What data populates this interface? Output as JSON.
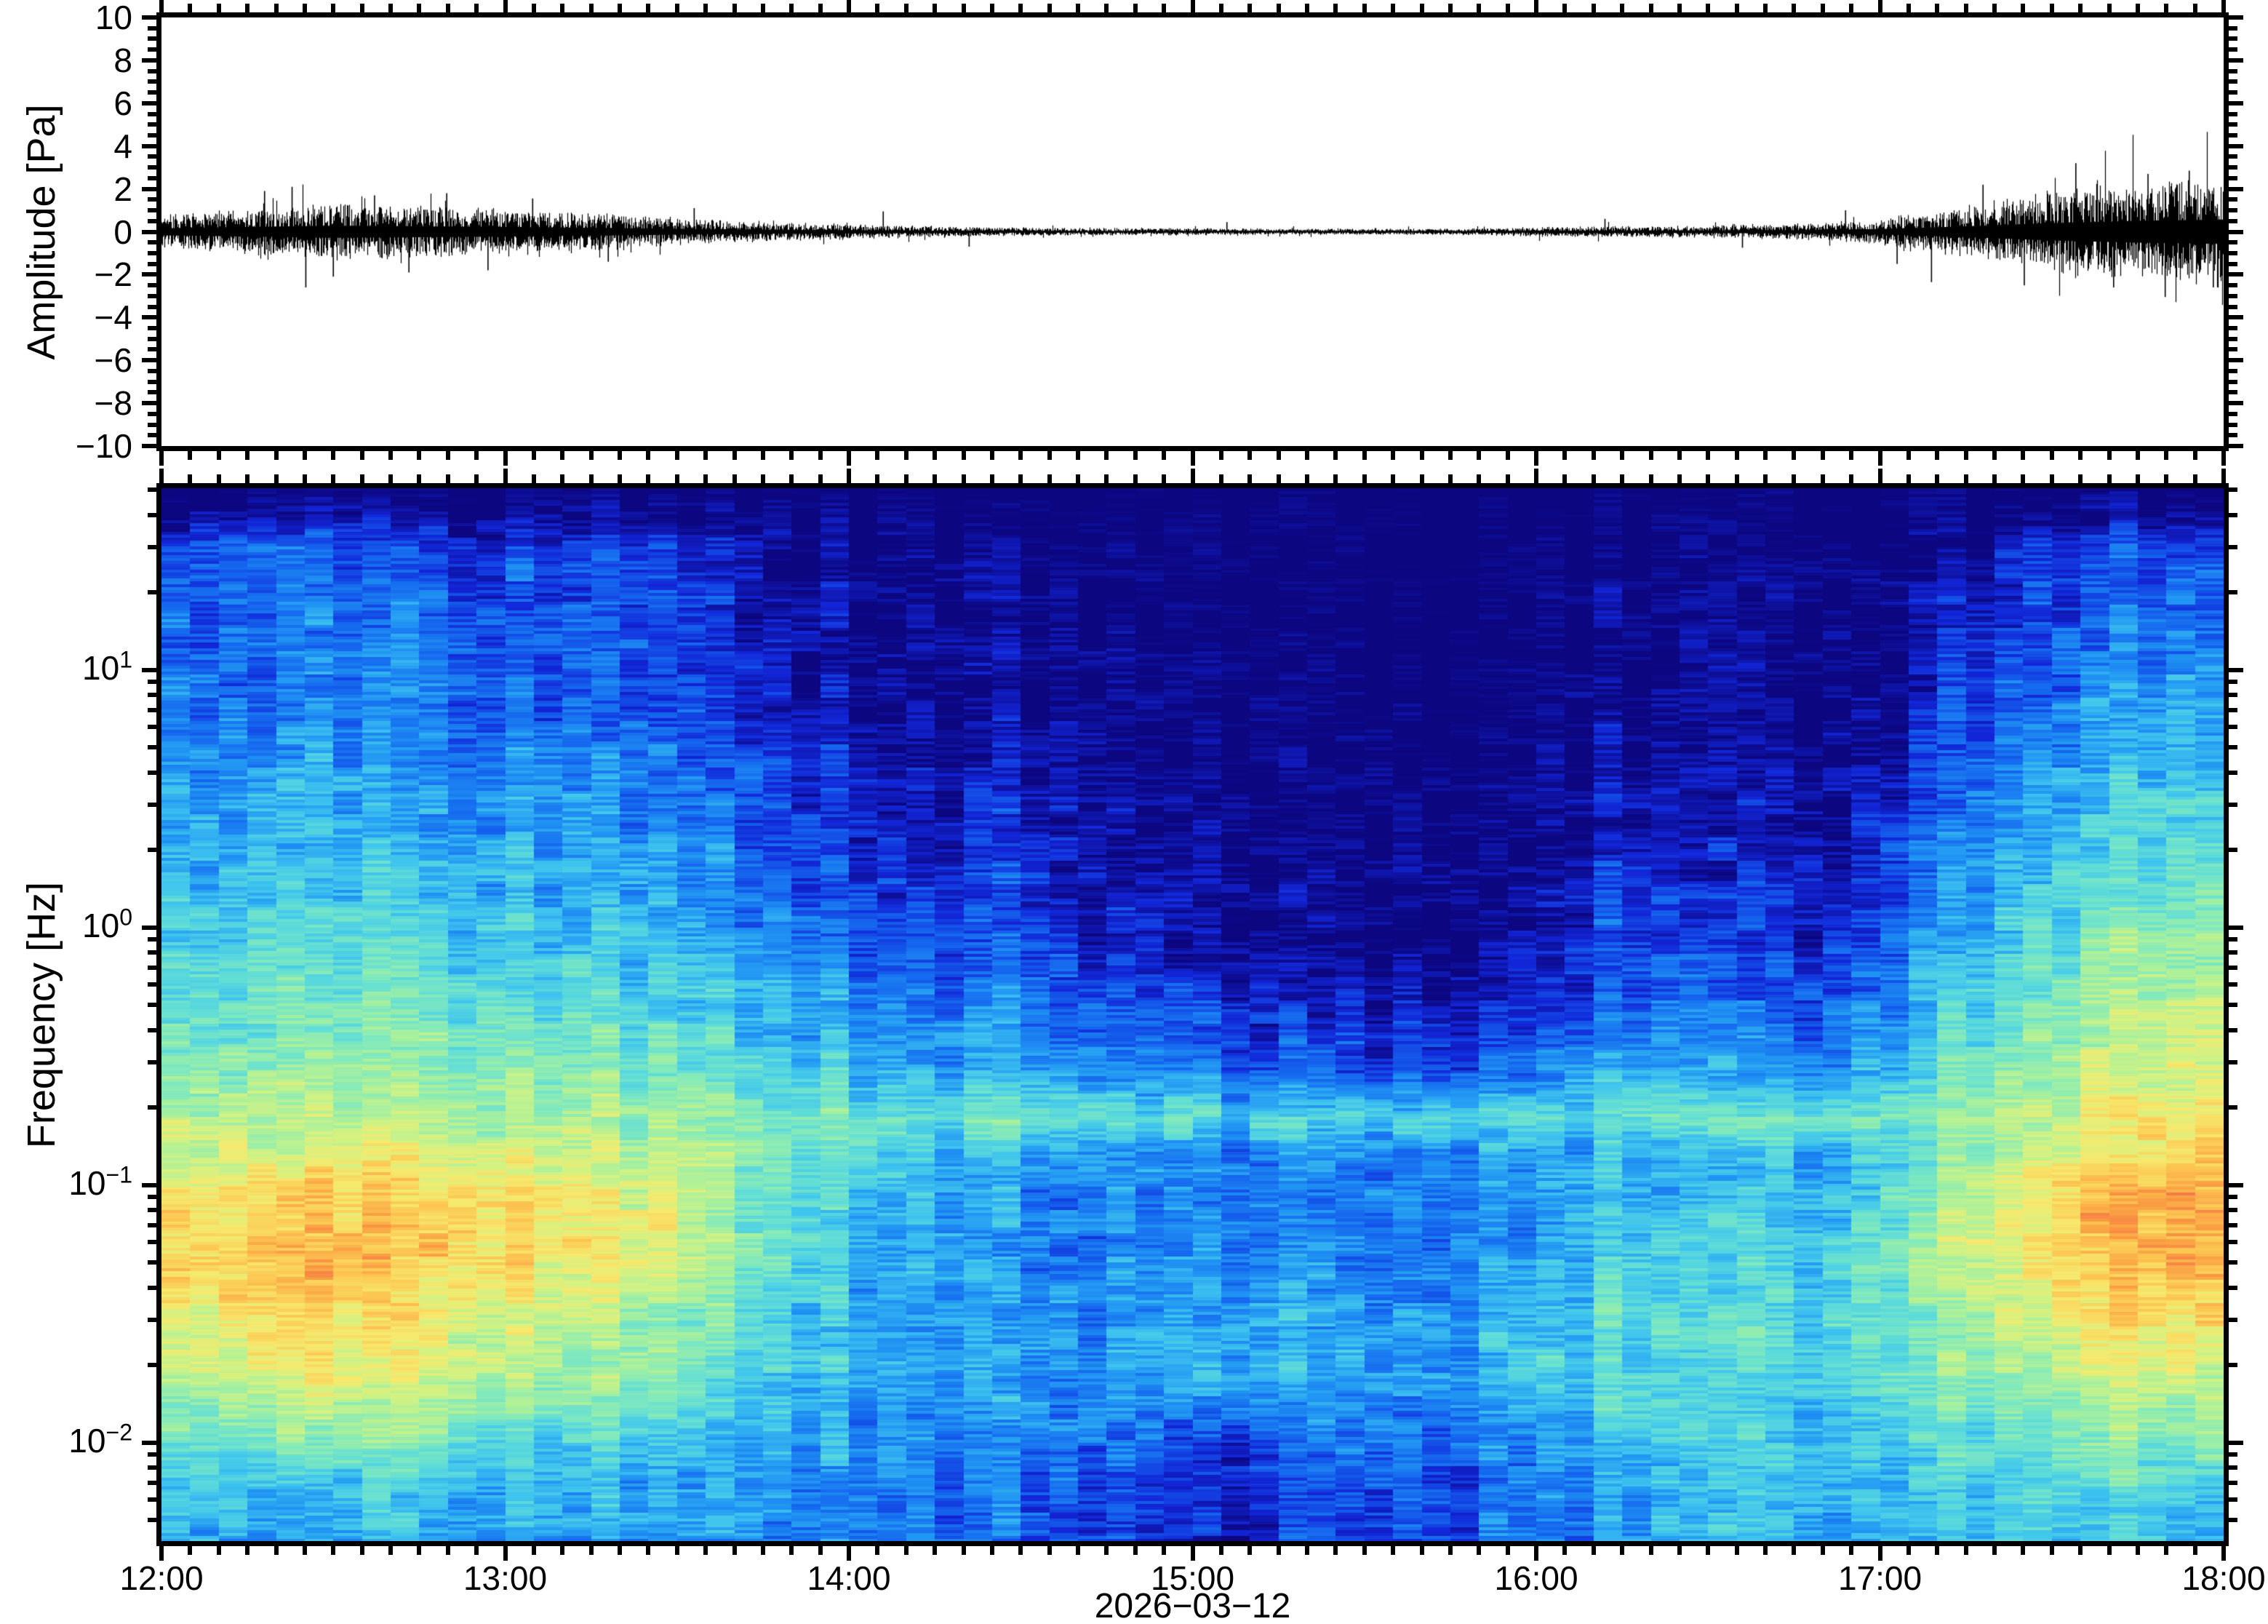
{
  "figure": {
    "background": "#ffffff",
    "frame_color": "#000000",
    "trace_color": "#000000"
  },
  "axes": {
    "x": {
      "tick_labels": [
        "12:00",
        "13:00",
        "14:00",
        "15:00",
        "16:00",
        "17:00",
        "18:00"
      ],
      "minor_tick_interval_minutes": 5,
      "date_label": "2026−03−12"
    },
    "top_y": {
      "label": "Amplitude [Pa]",
      "tick_labels": [
        "10",
        "8",
        "6",
        "4",
        "2",
        "0",
        "−2",
        "−4",
        "−6",
        "−8",
        "−10"
      ],
      "tick_values": [
        10,
        8,
        6,
        4,
        2,
        0,
        -2,
        -4,
        -6,
        -8,
        -10
      ],
      "minor_tick_step": 0.5,
      "limits": [
        -10,
        10
      ]
    },
    "bottom_y": {
      "label": "Frequency [Hz]",
      "tick_exponents": [
        1,
        0,
        -1,
        -2
      ],
      "scale": "log",
      "limits_hz": [
        0.0042,
        50.8
      ]
    }
  },
  "chart_data": [
    {
      "type": "line",
      "name": "infrasound-waveform",
      "title": "",
      "xlabel": "",
      "ylabel": "Amplitude [Pa]",
      "ylim": [
        -10,
        10
      ],
      "x_range_hours": [
        12,
        18
      ],
      "x_hours": [
        12.0,
        12.25,
        12.5,
        12.75,
        13.0,
        13.25,
        13.5,
        13.75,
        14.0,
        14.25,
        14.5,
        14.75,
        15.0,
        15.25,
        15.5,
        15.75,
        16.0,
        16.25,
        16.5,
        16.75,
        17.0,
        17.25,
        17.5,
        17.75,
        18.0
      ],
      "envelope_pa": [
        0.55,
        0.75,
        0.95,
        0.85,
        0.75,
        0.62,
        0.45,
        0.33,
        0.25,
        0.18,
        0.14,
        0.12,
        0.12,
        0.1,
        0.1,
        0.1,
        0.16,
        0.18,
        0.2,
        0.26,
        0.42,
        0.85,
        1.35,
        1.7,
        1.9
      ],
      "spikes_hour_pa": [
        [
          0.3,
          1.9
        ],
        [
          0.38,
          2.1
        ],
        [
          0.42,
          -2.6
        ],
        [
          0.5,
          -2.1
        ],
        [
          0.62,
          1.7
        ],
        [
          0.72,
          -1.9
        ],
        [
          0.83,
          1.8
        ],
        [
          0.95,
          -1.8
        ],
        [
          1.08,
          1.55
        ],
        [
          1.3,
          -1.4
        ],
        [
          1.55,
          1.1
        ],
        [
          2.1,
          0.95
        ],
        [
          2.35,
          -0.7
        ],
        [
          3.1,
          0.45
        ],
        [
          4.2,
          0.6
        ],
        [
          4.6,
          -0.75
        ],
        [
          4.9,
          1.0
        ],
        [
          5.05,
          -1.5
        ],
        [
          5.15,
          -2.35
        ],
        [
          5.3,
          2.2
        ],
        [
          5.42,
          -2.5
        ],
        [
          5.57,
          3.2
        ],
        [
          5.68,
          -2.6
        ],
        [
          5.78,
          2.7
        ],
        [
          5.83,
          -3.05
        ],
        [
          5.9,
          2.85
        ],
        [
          5.97,
          -2.6
        ]
      ]
    },
    {
      "type": "heatmap",
      "name": "spectrogram",
      "title": "",
      "xlabel": "2026−03−12",
      "ylabel": "Frequency [Hz]",
      "yscale": "log",
      "ylim_hz": [
        0.0042,
        50.8
      ],
      "x_range_hours": [
        12,
        18
      ],
      "time_step_minutes": 15,
      "x_hours": [
        12.0,
        12.25,
        12.5,
        12.75,
        13.0,
        13.25,
        13.5,
        13.75,
        14.0,
        14.25,
        14.5,
        14.75,
        15.0,
        15.25,
        15.5,
        15.75,
        16.0,
        16.25,
        16.5,
        16.75,
        17.0,
        17.25,
        17.5,
        17.75,
        18.0
      ],
      "freq_hz": [
        50,
        30,
        16,
        8,
        4,
        2,
        1,
        0.5,
        0.28,
        0.18,
        0.135,
        0.09,
        0.055,
        0.032,
        0.018,
        0.01,
        0.0065,
        0.0042
      ],
      "values_rel_power": [
        [
          0.06,
          0.05,
          0.05,
          0.05,
          0.05,
          0.05,
          0.04,
          0.04,
          0.04,
          0.03,
          0.03,
          0.03,
          0.03,
          0.03,
          0.03,
          0.03,
          0.03,
          0.04,
          0.04,
          0.04,
          0.04,
          0.05,
          0.06,
          0.06,
          0.06
        ],
        [
          0.3,
          0.29,
          0.3,
          0.29,
          0.28,
          0.26,
          0.22,
          0.16,
          0.12,
          0.1,
          0.12,
          0.07,
          0.05,
          0.05,
          0.04,
          0.04,
          0.05,
          0.1,
          0.08,
          0.07,
          0.1,
          0.18,
          0.26,
          0.29,
          0.3
        ],
        [
          0.33,
          0.32,
          0.33,
          0.32,
          0.31,
          0.29,
          0.26,
          0.2,
          0.15,
          0.12,
          0.15,
          0.09,
          0.07,
          0.06,
          0.05,
          0.05,
          0.06,
          0.13,
          0.1,
          0.09,
          0.13,
          0.22,
          0.3,
          0.33,
          0.34
        ],
        [
          0.36,
          0.35,
          0.36,
          0.35,
          0.34,
          0.32,
          0.28,
          0.23,
          0.18,
          0.14,
          0.18,
          0.11,
          0.08,
          0.08,
          0.07,
          0.07,
          0.08,
          0.16,
          0.12,
          0.11,
          0.16,
          0.26,
          0.36,
          0.4,
          0.42
        ],
        [
          0.4,
          0.39,
          0.4,
          0.39,
          0.38,
          0.36,
          0.32,
          0.27,
          0.22,
          0.17,
          0.22,
          0.14,
          0.1,
          0.1,
          0.09,
          0.09,
          0.1,
          0.2,
          0.15,
          0.14,
          0.2,
          0.31,
          0.42,
          0.46,
          0.48
        ],
        [
          0.44,
          0.43,
          0.45,
          0.44,
          0.43,
          0.41,
          0.37,
          0.32,
          0.26,
          0.21,
          0.26,
          0.17,
          0.13,
          0.12,
          0.11,
          0.11,
          0.13,
          0.24,
          0.19,
          0.17,
          0.25,
          0.37,
          0.48,
          0.53,
          0.56
        ],
        [
          0.5,
          0.49,
          0.51,
          0.5,
          0.49,
          0.47,
          0.43,
          0.37,
          0.31,
          0.26,
          0.31,
          0.21,
          0.16,
          0.15,
          0.14,
          0.14,
          0.17,
          0.29,
          0.24,
          0.22,
          0.31,
          0.44,
          0.55,
          0.61,
          0.64
        ],
        [
          0.57,
          0.56,
          0.58,
          0.57,
          0.56,
          0.54,
          0.5,
          0.44,
          0.38,
          0.33,
          0.38,
          0.28,
          0.23,
          0.21,
          0.2,
          0.2,
          0.24,
          0.36,
          0.31,
          0.29,
          0.38,
          0.51,
          0.62,
          0.68,
          0.71
        ],
        [
          0.64,
          0.63,
          0.66,
          0.65,
          0.64,
          0.62,
          0.58,
          0.52,
          0.47,
          0.42,
          0.46,
          0.37,
          0.32,
          0.3,
          0.29,
          0.29,
          0.33,
          0.44,
          0.4,
          0.38,
          0.46,
          0.58,
          0.69,
          0.75,
          0.77
        ],
        [
          0.7,
          0.7,
          0.72,
          0.71,
          0.7,
          0.68,
          0.65,
          0.61,
          0.58,
          0.56,
          0.58,
          0.54,
          0.52,
          0.52,
          0.52,
          0.52,
          0.54,
          0.58,
          0.57,
          0.56,
          0.6,
          0.66,
          0.74,
          0.8,
          0.82
        ],
        [
          0.74,
          0.74,
          0.76,
          0.75,
          0.74,
          0.72,
          0.68,
          0.62,
          0.55,
          0.48,
          0.45,
          0.4,
          0.38,
          0.38,
          0.38,
          0.38,
          0.4,
          0.46,
          0.44,
          0.43,
          0.5,
          0.62,
          0.76,
          0.84,
          0.86
        ],
        [
          0.82,
          0.84,
          0.88,
          0.86,
          0.84,
          0.8,
          0.74,
          0.6,
          0.48,
          0.42,
          0.4,
          0.36,
          0.35,
          0.36,
          0.36,
          0.36,
          0.38,
          0.48,
          0.44,
          0.44,
          0.55,
          0.72,
          0.86,
          0.94,
          0.95
        ],
        [
          0.86,
          0.9,
          0.92,
          0.88,
          0.85,
          0.8,
          0.72,
          0.58,
          0.46,
          0.4,
          0.38,
          0.36,
          0.36,
          0.37,
          0.36,
          0.37,
          0.4,
          0.52,
          0.48,
          0.47,
          0.58,
          0.72,
          0.87,
          0.93,
          0.93
        ],
        [
          0.8,
          0.84,
          0.86,
          0.82,
          0.78,
          0.72,
          0.64,
          0.54,
          0.45,
          0.4,
          0.4,
          0.38,
          0.4,
          0.42,
          0.4,
          0.41,
          0.46,
          0.56,
          0.52,
          0.5,
          0.58,
          0.68,
          0.8,
          0.86,
          0.85
        ],
        [
          0.7,
          0.74,
          0.76,
          0.73,
          0.7,
          0.64,
          0.58,
          0.5,
          0.44,
          0.4,
          0.42,
          0.4,
          0.42,
          0.44,
          0.42,
          0.43,
          0.48,
          0.55,
          0.52,
          0.5,
          0.55,
          0.62,
          0.7,
          0.74,
          0.73
        ],
        [
          0.58,
          0.6,
          0.62,
          0.6,
          0.56,
          0.52,
          0.48,
          0.44,
          0.4,
          0.36,
          0.38,
          0.34,
          0.25,
          0.3,
          0.34,
          0.33,
          0.38,
          0.48,
          0.48,
          0.47,
          0.5,
          0.55,
          0.6,
          0.62,
          0.6
        ],
        [
          0.5,
          0.48,
          0.45,
          0.48,
          0.46,
          0.44,
          0.42,
          0.4,
          0.37,
          0.33,
          0.34,
          0.3,
          0.18,
          0.22,
          0.3,
          0.3,
          0.35,
          0.44,
          0.45,
          0.44,
          0.46,
          0.5,
          0.52,
          0.52,
          0.5
        ],
        [
          0.46,
          0.42,
          0.38,
          0.42,
          0.42,
          0.4,
          0.38,
          0.37,
          0.35,
          0.32,
          0.32,
          0.28,
          0.2,
          0.24,
          0.3,
          0.3,
          0.34,
          0.42,
          0.43,
          0.42,
          0.44,
          0.47,
          0.48,
          0.47,
          0.45
        ]
      ],
      "colormap_stops": [
        [
          0.0,
          "#0c0680"
        ],
        [
          0.1,
          "#1226d8"
        ],
        [
          0.18,
          "#1565ee"
        ],
        [
          0.26,
          "#2196f3"
        ],
        [
          0.33,
          "#3fc4ee"
        ],
        [
          0.4,
          "#5fdcd8"
        ],
        [
          0.47,
          "#81e9bd"
        ],
        [
          0.54,
          "#aaf09c"
        ],
        [
          0.61,
          "#d3f283"
        ],
        [
          0.68,
          "#f6e96d"
        ],
        [
          0.76,
          "#fcc853"
        ],
        [
          0.84,
          "#fa9a41"
        ],
        [
          0.91,
          "#f3694c"
        ],
        [
          0.96,
          "#ee5a57"
        ],
        [
          1.0,
          "#f2a0a0"
        ]
      ],
      "legend": "none",
      "grid": "off"
    }
  ]
}
